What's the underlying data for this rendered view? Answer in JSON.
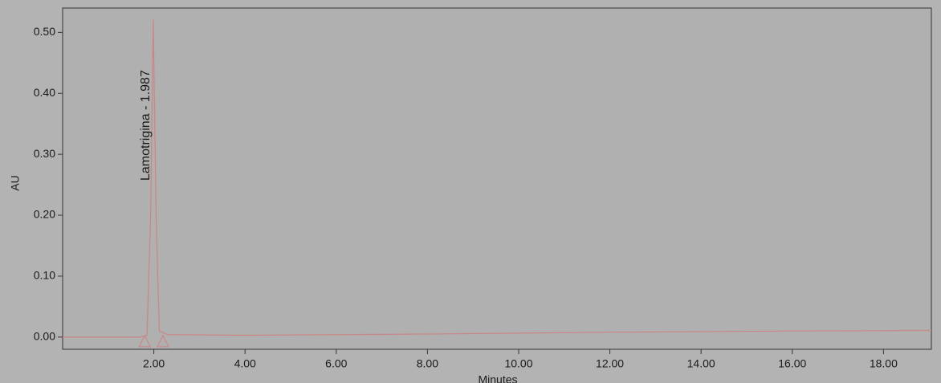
{
  "chart_data": {
    "type": "line",
    "x_label": "Minutes",
    "y_label": "AU",
    "annotation": "Lamotrigina - 1.987",
    "annotation_x": 1.987,
    "peak_bounds": [
      1.8,
      2.2
    ],
    "xlim": [
      0,
      19.05
    ],
    "ylim": [
      -0.02,
      0.54
    ],
    "xticks": [
      {
        "value": 2,
        "label": "2.00"
      },
      {
        "value": 4,
        "label": "4.00"
      },
      {
        "value": 6,
        "label": "6.00"
      },
      {
        "value": 8,
        "label": "8.00"
      },
      {
        "value": 10,
        "label": "10.00"
      },
      {
        "value": 12,
        "label": "12.00"
      },
      {
        "value": 14,
        "label": "14.00"
      },
      {
        "value": 16,
        "label": "16.00"
      },
      {
        "value": 18,
        "label": "18.00"
      }
    ],
    "yticks": [
      {
        "value": 0,
        "label": "0.00"
      },
      {
        "value": 0.1,
        "label": "0.10"
      },
      {
        "value": 0.2,
        "label": "0.20"
      },
      {
        "value": 0.3,
        "label": "0.30"
      },
      {
        "value": 0.4,
        "label": "0.40"
      },
      {
        "value": 0.5,
        "label": "0.50"
      }
    ],
    "series": [
      {
        "color": "#c98888",
        "x": [
          0,
          1.7,
          1.85,
          1.93,
          1.987,
          2.05,
          2.12,
          2.3,
          4,
          8,
          12,
          16,
          19.05
        ],
        "values": [
          0,
          0,
          0.003,
          0.2,
          0.521,
          0.2,
          0.01,
          0.004,
          0.003,
          0.005,
          0.008,
          0.01,
          0.011
        ]
      }
    ]
  }
}
